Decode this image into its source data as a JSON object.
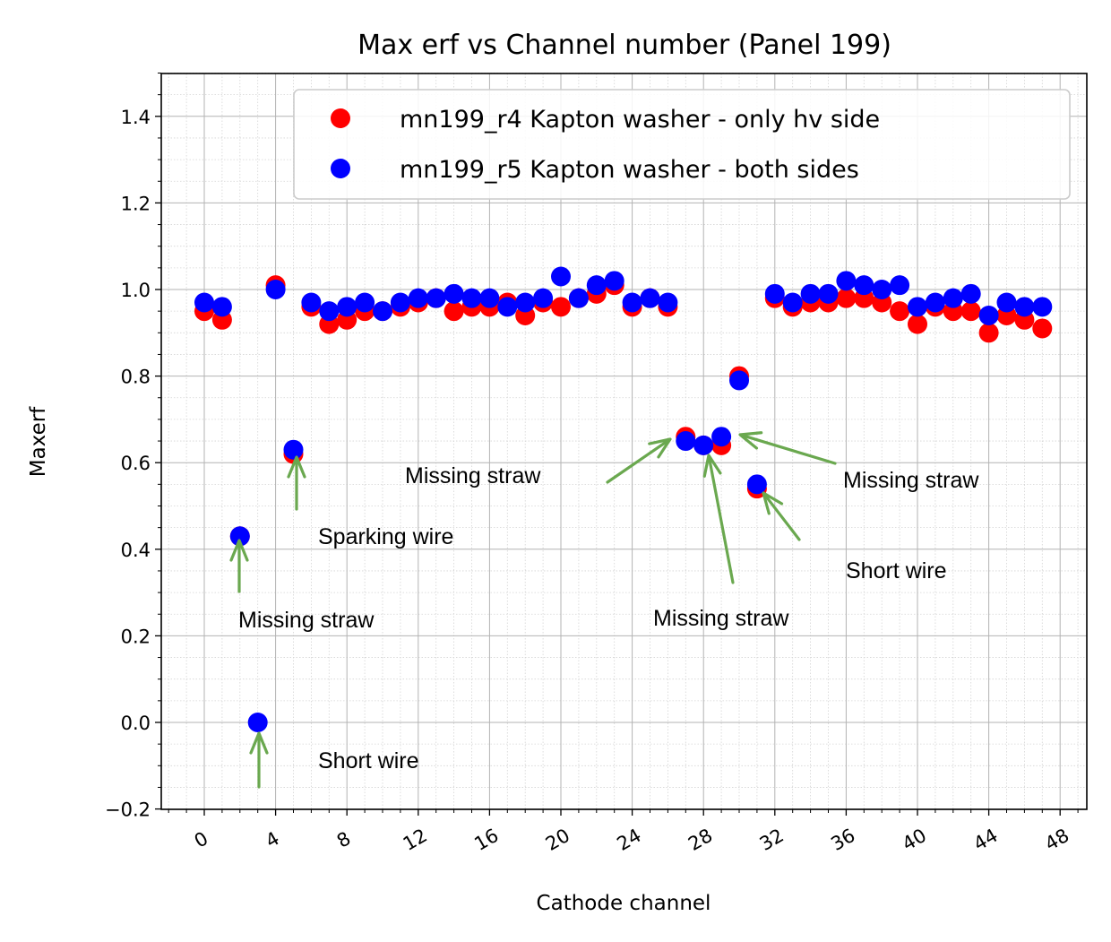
{
  "chart_data": {
    "type": "scatter",
    "title": "Max erf vs Channel number (Panel 199)",
    "xlabel": "Cathode channel",
    "ylabel": "Maxerf",
    "xlim": [
      -2.5,
      49.5
    ],
    "ylim": [
      -0.2,
      1.5
    ],
    "xticks": [
      "0",
      "4",
      "8",
      "12",
      "16",
      "20",
      "24",
      "28",
      "32",
      "36",
      "40",
      "44",
      "48"
    ],
    "yticks": [
      "−0.2",
      "0.0",
      "0.2",
      "0.4",
      "0.6",
      "0.8",
      "1.0",
      "1.2",
      "1.4"
    ],
    "grid": true,
    "minor_grid": true,
    "legend_position": "top-right",
    "series": [
      {
        "name": "mn199_r4 Kapton washer - only hv side",
        "color": "#ff0000",
        "points": [
          [
            0,
            0.95
          ],
          [
            1,
            0.93
          ],
          [
            2,
            0.43
          ],
          [
            4,
            1.01
          ],
          [
            5,
            0.62
          ],
          [
            6,
            0.96
          ],
          [
            7,
            0.92
          ],
          [
            8,
            0.93
          ],
          [
            9,
            0.95
          ],
          [
            10,
            0.95
          ],
          [
            11,
            0.96
          ],
          [
            12,
            0.97
          ],
          [
            13,
            0.98
          ],
          [
            14,
            0.95
          ],
          [
            15,
            0.96
          ],
          [
            16,
            0.96
          ],
          [
            17,
            0.97
          ],
          [
            18,
            0.94
          ],
          [
            19,
            0.97
          ],
          [
            20,
            0.96
          ],
          [
            21,
            0.98
          ],
          [
            22,
            0.99
          ],
          [
            23,
            1.01
          ],
          [
            24,
            0.96
          ],
          [
            25,
            0.98
          ],
          [
            26,
            0.96
          ],
          [
            27,
            0.66
          ],
          [
            28,
            0.64
          ],
          [
            29,
            0.64
          ],
          [
            30,
            0.8
          ],
          [
            31,
            0.54
          ],
          [
            32,
            0.98
          ],
          [
            33,
            0.96
          ],
          [
            34,
            0.97
          ],
          [
            35,
            0.97
          ],
          [
            36,
            0.98
          ],
          [
            37,
            0.98
          ],
          [
            38,
            0.97
          ],
          [
            39,
            0.95
          ],
          [
            40,
            0.92
          ],
          [
            41,
            0.96
          ],
          [
            42,
            0.95
          ],
          [
            43,
            0.95
          ],
          [
            44,
            0.9
          ],
          [
            45,
            0.94
          ],
          [
            46,
            0.93
          ],
          [
            47,
            0.91
          ]
        ]
      },
      {
        "name": "mn199_r5 Kapton washer - both sides",
        "color": "#0000ff",
        "points": [
          [
            0,
            0.97
          ],
          [
            1,
            0.96
          ],
          [
            2,
            0.43
          ],
          [
            3,
            0.0
          ],
          [
            4,
            1.0
          ],
          [
            5,
            0.63
          ],
          [
            6,
            0.97
          ],
          [
            7,
            0.95
          ],
          [
            8,
            0.96
          ],
          [
            9,
            0.97
          ],
          [
            10,
            0.95
          ],
          [
            11,
            0.97
          ],
          [
            12,
            0.98
          ],
          [
            13,
            0.98
          ],
          [
            14,
            0.99
          ],
          [
            15,
            0.98
          ],
          [
            16,
            0.98
          ],
          [
            17,
            0.96
          ],
          [
            18,
            0.97
          ],
          [
            19,
            0.98
          ],
          [
            20,
            1.03
          ],
          [
            21,
            0.98
          ],
          [
            22,
            1.01
          ],
          [
            23,
            1.02
          ],
          [
            24,
            0.97
          ],
          [
            25,
            0.98
          ],
          [
            26,
            0.97
          ],
          [
            27,
            0.65
          ],
          [
            28,
            0.64
          ],
          [
            29,
            0.66
          ],
          [
            30,
            0.79
          ],
          [
            31,
            0.55
          ],
          [
            32,
            0.99
          ],
          [
            33,
            0.97
          ],
          [
            34,
            0.99
          ],
          [
            35,
            0.99
          ],
          [
            36,
            1.02
          ],
          [
            37,
            1.01
          ],
          [
            38,
            1.0
          ],
          [
            39,
            1.01
          ],
          [
            40,
            0.96
          ],
          [
            41,
            0.97
          ],
          [
            42,
            0.98
          ],
          [
            43,
            0.99
          ],
          [
            44,
            0.94
          ],
          [
            45,
            0.97
          ],
          [
            46,
            0.96
          ],
          [
            47,
            0.96
          ]
        ]
      }
    ],
    "annotations": [
      {
        "text": "Missing  straw",
        "target": [
          2,
          0.43
        ]
      },
      {
        "text": "Short wire",
        "target": [
          3,
          0.0
        ]
      },
      {
        "text": "Sparking wire",
        "target": [
          5,
          0.63
        ]
      },
      {
        "text": "Missing  straw",
        "target": [
          26,
          0.66
        ]
      },
      {
        "text": "Missing  straw",
        "target": [
          28,
          0.64
        ]
      },
      {
        "text": "Missing  straw",
        "target": [
          30,
          0.66
        ]
      },
      {
        "text": "Short wire",
        "target": [
          31,
          0.55
        ]
      }
    ],
    "arrow_color": "#6aa84f"
  }
}
